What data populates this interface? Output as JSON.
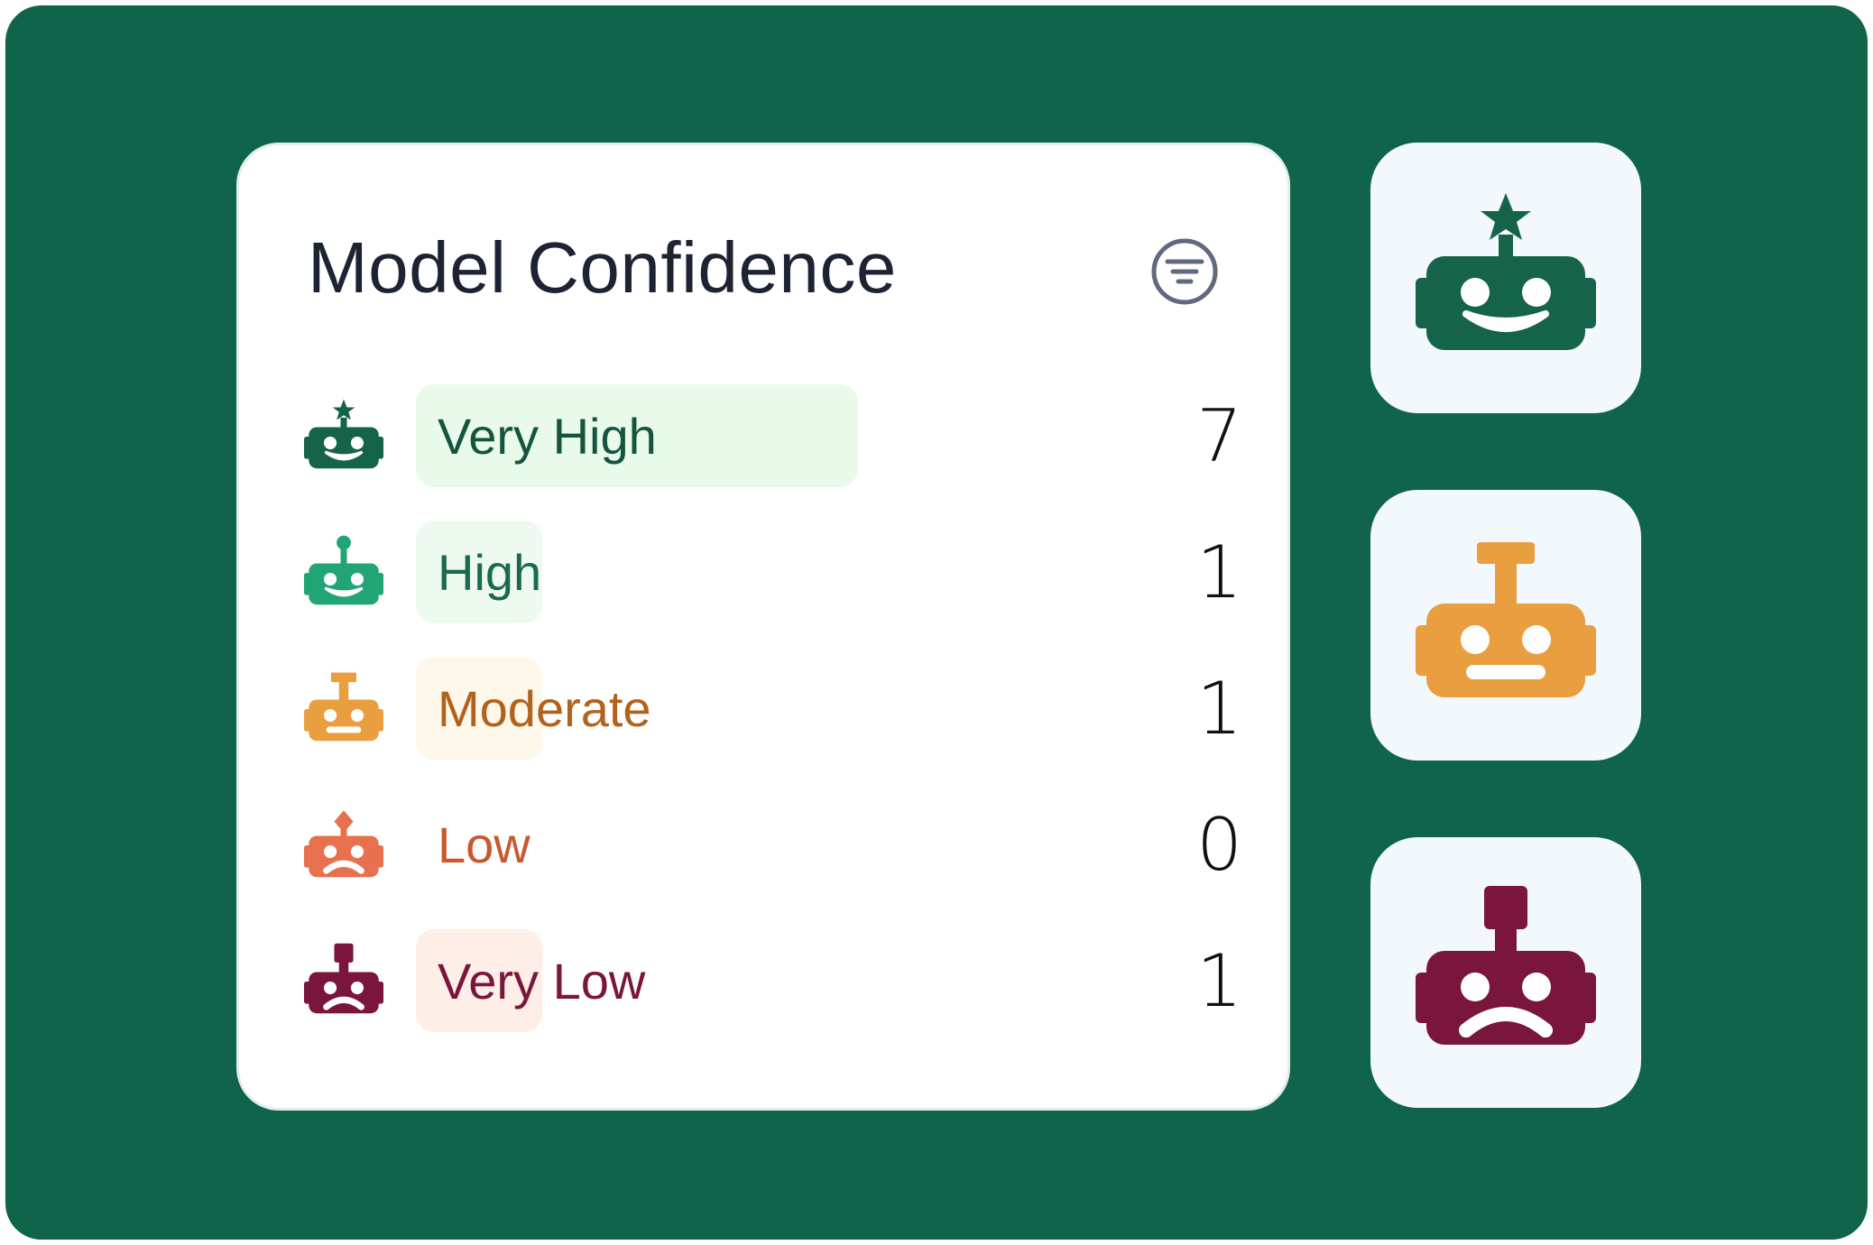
{
  "panel": {
    "title": "Model Confidence",
    "filter_icon": "filter-icon"
  },
  "levels": [
    {
      "label": "Very High",
      "count": "7",
      "share": 0.7,
      "icon": "robot-star-smile-icon",
      "color": "#15644a",
      "bar_color": "#eafaea",
      "text_color": "#15553f"
    },
    {
      "label": "High",
      "count": "1",
      "share": 0.1,
      "icon": "robot-antenna-smile-icon",
      "color": "#22a574",
      "bar_color": "#eefaef",
      "text_color": "#1a6a4c"
    },
    {
      "label": "Moderate",
      "count": "1",
      "share": 0.1,
      "icon": "robot-neutral-icon",
      "color": "#e99e3f",
      "bar_color": "#fdf8ea",
      "text_color": "#b2621a"
    },
    {
      "label": "Low",
      "count": "0",
      "share": 0.0,
      "icon": "robot-diamond-frown-icon",
      "color": "#e7714e",
      "bar_color": "#fdeee6",
      "text_color": "#c9582f"
    },
    {
      "label": "Very Low",
      "count": "1",
      "share": 0.1,
      "icon": "robot-sad-icon",
      "color": "#7a153c",
      "bar_color": "#fdeee8",
      "text_color": "#7a153c"
    }
  ],
  "side_tiles": [
    {
      "icon": "robot-star-smile-icon",
      "color": "#15644a"
    },
    {
      "icon": "robot-neutral-icon",
      "color": "#e99e3f"
    },
    {
      "icon": "robot-sad-icon",
      "color": "#7a153c"
    }
  ]
}
